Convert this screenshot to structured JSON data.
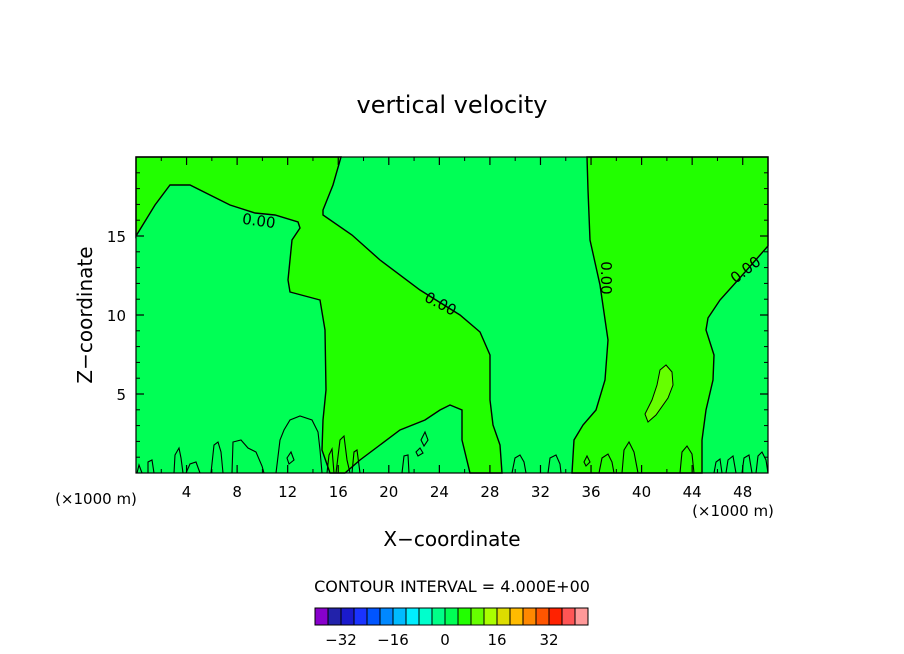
{
  "chart_data": {
    "type": "contour",
    "title": "vertical velocity",
    "xlabel": "X−coordinate",
    "ylabel": "Z−coordinate",
    "x_unit_left": "(×1000 m)",
    "x_unit_right": "(×1000 m)",
    "xlim": [
      0,
      50
    ],
    "ylim": [
      0,
      20
    ],
    "x_ticks": [
      4,
      8,
      12,
      16,
      20,
      24,
      28,
      32,
      36,
      40,
      44,
      48
    ],
    "x_tick_labels": [
      "4",
      "8",
      "12",
      "16",
      "20",
      "24",
      "28",
      "32",
      "36",
      "40",
      "44",
      "48"
    ],
    "y_ticks": [
      5,
      10,
      15
    ],
    "y_tick_labels": [
      "5",
      "10",
      "15"
    ],
    "contour_interval_label": "CONTOUR INTERVAL = 4.000E+00",
    "contour_labels": [
      "0.00",
      "0.00",
      "0.00",
      "0.00"
    ],
    "background_color": "#00ff55",
    "positive_region_color": "#22ff00",
    "colorbar": {
      "colors": [
        "#8800cc",
        "#2222aa",
        "#1a1acc",
        "#1a33ff",
        "#0055ff",
        "#0088ff",
        "#00bbff",
        "#00eeff",
        "#00ffcc",
        "#00ff88",
        "#00ff55",
        "#22ff00",
        "#66ff00",
        "#aaff00",
        "#dddd00",
        "#ffbb00",
        "#ff8800",
        "#ff5500",
        "#ff2200",
        "#ff5555",
        "#ff9999"
      ],
      "tick_values": [
        -32,
        -16,
        0,
        16,
        32
      ],
      "tick_labels": [
        "−32",
        "−16",
        "0",
        "16",
        "32"
      ]
    }
  }
}
